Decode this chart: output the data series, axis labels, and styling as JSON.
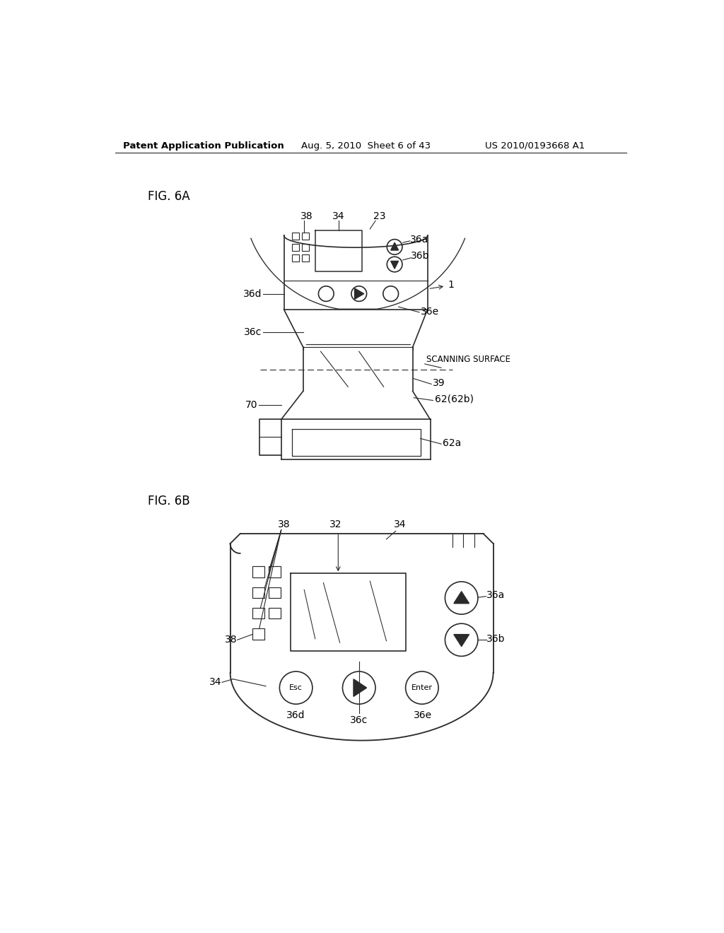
{
  "background_color": "#ffffff",
  "header_left": "Patent Application Publication",
  "header_mid": "Aug. 5, 2010  Sheet 6 of 43",
  "header_right": "US 2010/0193668 A1",
  "fig6a_label": "FIG. 6A",
  "fig6b_label": "FIG. 6B",
  "line_color": "#2a2a2a",
  "text_color": "#000000",
  "label_fontsize": 10,
  "header_fontsize": 10
}
